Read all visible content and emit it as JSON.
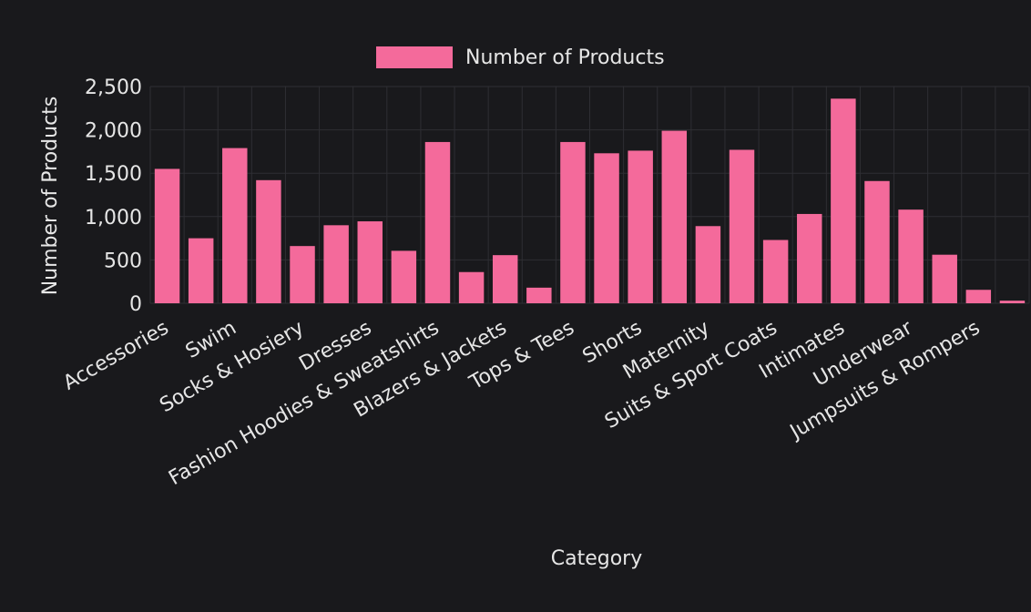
{
  "colors": {
    "background": "#19191c",
    "bar": "#f46a9b",
    "text": "#e6e6e6",
    "grid": "#2e2e33"
  },
  "chart_data": {
    "type": "bar",
    "legend": {
      "label": "Number of Products",
      "placement": "top-center"
    },
    "xlabel": "Category",
    "ylabel": "Number of Products",
    "ylim": [
      0,
      2500
    ],
    "yticks": [
      0,
      500,
      1000,
      1500,
      2000,
      2500
    ],
    "ytick_labels": [
      "0",
      "500",
      "1,000",
      "1,500",
      "2,000",
      "2,500"
    ],
    "grid": true,
    "categories": [
      "Accessories",
      "",
      "Swim",
      "",
      "Socks & Hosiery",
      "",
      "Dresses",
      "",
      "Fashion Hoodies & Sweatshirts",
      "",
      "Blazers & Jackets",
      "",
      "Tops & Tees",
      "",
      "Shorts",
      "",
      "Maternity",
      "",
      "Suits & Sport Coats",
      "",
      "Intimates",
      "",
      "Underwear",
      "",
      "Jumpsuits & Rompers",
      ""
    ],
    "series": [
      {
        "name": "Number of Products",
        "values": [
          1550,
          750,
          1790,
          1420,
          660,
          900,
          945,
          605,
          1860,
          360,
          555,
          180,
          1860,
          1730,
          1760,
          1990,
          890,
          1770,
          730,
          1030,
          2360,
          1410,
          1080,
          560,
          155,
          30
        ]
      }
    ]
  }
}
